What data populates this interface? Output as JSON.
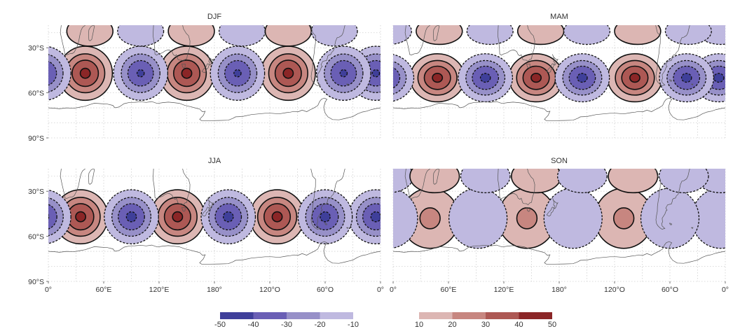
{
  "chart_data": {
    "type": "contour",
    "panels": [
      {
        "title": "DJF",
        "show_x_labels": false,
        "positive_centers": [
          [
            40,
            -47
          ],
          [
            150,
            -47
          ],
          [
            260,
            -47
          ]
        ],
        "negative_centers": [
          [
            -5,
            -47
          ],
          [
            100,
            -47
          ],
          [
            205,
            -47
          ],
          [
            320,
            -47
          ]
        ],
        "peak": 42,
        "trough": -41,
        "lat_spread": 9,
        "lon_spread": 14,
        "upper_blobs": [
          [
            45,
            -19,
            1
          ],
          [
            100,
            -19,
            -1
          ],
          [
            155,
            -19,
            1
          ],
          [
            210,
            -19,
            -1
          ],
          [
            260,
            -19,
            1
          ],
          [
            310,
            -19,
            -1
          ]
        ]
      },
      {
        "title": "MAM",
        "show_x_labels": false,
        "positive_centers": [
          [
            48,
            -50
          ],
          [
            155,
            -50
          ],
          [
            262,
            -50
          ]
        ],
        "negative_centers": [
          [
            -7,
            -50
          ],
          [
            100,
            -50
          ],
          [
            205,
            -50
          ],
          [
            318,
            -50
          ]
        ],
        "peak": 42,
        "trough": -42,
        "lat_spread": 8,
        "lon_spread": 14,
        "upper_blobs": [
          [
            -5,
            -19,
            -1
          ],
          [
            50,
            -19,
            1
          ],
          [
            105,
            -19,
            -1
          ],
          [
            160,
            -19,
            1
          ],
          [
            210,
            -19,
            -1
          ],
          [
            265,
            -19,
            1
          ],
          [
            320,
            -19,
            -1
          ]
        ]
      },
      {
        "title": "JJA",
        "show_x_labels": true,
        "positive_centers": [
          [
            35,
            -47
          ],
          [
            140,
            -47
          ],
          [
            248,
            -47
          ]
        ],
        "negative_centers": [
          [
            -5,
            -47
          ],
          [
            90,
            -47
          ],
          [
            195,
            -47
          ],
          [
            300,
            -47
          ]
        ],
        "peak": 42,
        "trough": -42,
        "lat_spread": 9,
        "lon_spread": 14,
        "upper_blobs": []
      },
      {
        "title": "SON",
        "show_x_labels": true,
        "positive_centers": [
          [
            40,
            -48
          ],
          [
            145,
            -48
          ],
          [
            250,
            -48
          ]
        ],
        "negative_centers": [
          [
            -5,
            -48
          ],
          [
            92,
            -48
          ],
          [
            195,
            -48
          ],
          [
            300,
            -48
          ]
        ],
        "peak": 22,
        "trough": -19,
        "lat_spread": 10,
        "lon_spread": 15,
        "upper_blobs": [
          [
            -5,
            -20,
            -1
          ],
          [
            45,
            -20,
            1
          ],
          [
            100,
            -20,
            -1
          ],
          [
            155,
            -20,
            1
          ],
          [
            205,
            -20,
            -1
          ],
          [
            260,
            -20,
            1
          ],
          [
            315,
            -20,
            -1
          ]
        ]
      }
    ],
    "y_ticks": [
      {
        "lat": -30,
        "label": "30°S"
      },
      {
        "lat": -60,
        "label": "60°S"
      },
      {
        "lat": -90,
        "label": "90°S"
      }
    ],
    "x_ticks": [
      {
        "lon": 0,
        "label": "0°"
      },
      {
        "lon": 60,
        "label": "60°E"
      },
      {
        "lon": 120,
        "label": "120°E"
      },
      {
        "lon": 180,
        "label": "180°"
      },
      {
        "lon": 240,
        "label": "120°O"
      },
      {
        "lon": 300,
        "label": "60°O"
      },
      {
        "lon": 360,
        "label": "0°"
      }
    ],
    "lat_range": [
      -90,
      -15
    ],
    "lon_range": [
      0,
      360
    ],
    "negative_colorbar": {
      "bounds": [
        -50,
        -40,
        -30,
        -20,
        -10
      ],
      "labels": [
        "-50",
        "-40",
        "-30",
        "-20",
        "-10"
      ],
      "colors": [
        "#3f3f9a",
        "#6a5fb5",
        "#9790c8",
        "#bfb9e0"
      ]
    },
    "positive_colorbar": {
      "bounds": [
        10,
        20,
        30,
        40,
        50
      ],
      "labels": [
        "10",
        "20",
        "30",
        "40",
        "50"
      ],
      "colors": [
        "#dcb6b3",
        "#c78680",
        "#ad5854",
        "#8b2627"
      ]
    },
    "grid": true
  }
}
